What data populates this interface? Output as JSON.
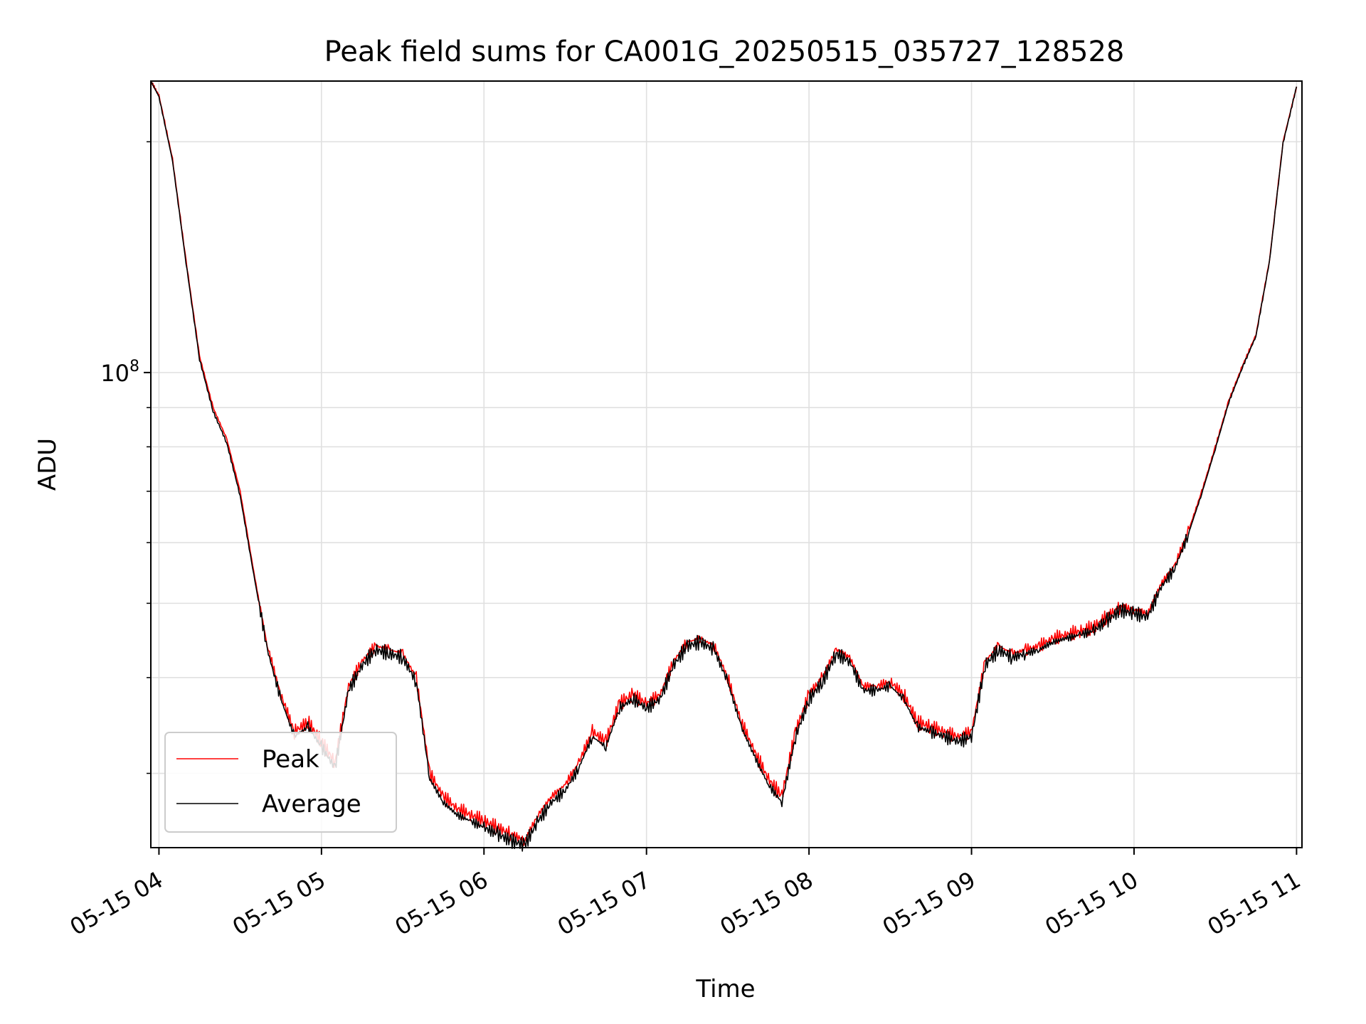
{
  "chart_data": {
    "type": "line",
    "title": "Peak field sums for CA001G_20250515_035727_128528",
    "xlabel": "Time",
    "ylabel": "ADU",
    "y_scale": "log",
    "ylim": [
      24000000,
      240000000
    ],
    "xlim": [
      "05-15 03:57",
      "05-15 11:02"
    ],
    "grid": true,
    "legend_position": "lower-left",
    "x_ticks": [
      "05-15 04",
      "05-15 05",
      "05-15 06",
      "05-15 07",
      "05-15 08",
      "05-15 09",
      "05-15 10",
      "05-15 11"
    ],
    "y_major_tick": {
      "base": "10",
      "exponent": "8",
      "value": 100000000
    },
    "y_minor_ticks": [
      30000000,
      40000000,
      50000000,
      60000000,
      70000000,
      80000000,
      90000000,
      200000000
    ],
    "x": [
      "03:57",
      "04:00",
      "04:05",
      "04:10",
      "04:15",
      "04:20",
      "04:25",
      "04:30",
      "04:35",
      "04:40",
      "04:45",
      "04:50",
      "04:55",
      "05:00",
      "05:05",
      "05:10",
      "05:15",
      "05:20",
      "05:25",
      "05:30",
      "05:35",
      "05:40",
      "05:45",
      "05:50",
      "05:55",
      "06:00",
      "06:05",
      "06:10",
      "06:15",
      "06:20",
      "06:25",
      "06:30",
      "06:35",
      "06:40",
      "06:45",
      "06:50",
      "06:55",
      "07:00",
      "07:05",
      "07:10",
      "07:15",
      "07:20",
      "07:25",
      "07:30",
      "07:35",
      "07:40",
      "07:45",
      "07:50",
      "07:55",
      "08:00",
      "08:05",
      "08:10",
      "08:15",
      "08:20",
      "08:25",
      "08:30",
      "08:35",
      "08:40",
      "08:45",
      "08:50",
      "08:55",
      "09:00",
      "09:05",
      "09:10",
      "09:15",
      "09:20",
      "09:25",
      "09:30",
      "09:35",
      "09:40",
      "09:45",
      "09:50",
      "09:55",
      "10:00",
      "10:05",
      "10:10",
      "10:15",
      "10:20",
      "10:25",
      "10:30",
      "10:35",
      "10:40",
      "10:45",
      "10:50",
      "10:55",
      "11:00"
    ],
    "series": [
      {
        "name": "Peak",
        "color": "#ff0000",
        "values": [
          240000000,
          230000000,
          190000000,
          140000000,
          105000000,
          90000000,
          82000000,
          70000000,
          55000000,
          44000000,
          38000000,
          34000000,
          35000000,
          33000000,
          31000000,
          39000000,
          42000000,
          44000000,
          43500000,
          43000000,
          40000000,
          30000000,
          28000000,
          27000000,
          26500000,
          26000000,
          25500000,
          25000000,
          24500000,
          26500000,
          28000000,
          29000000,
          31000000,
          34000000,
          33000000,
          37000000,
          38000000,
          37000000,
          38000000,
          42000000,
          44500000,
          45000000,
          44000000,
          40000000,
          35000000,
          32000000,
          29500000,
          28000000,
          34000000,
          38000000,
          40000000,
          43500000,
          42500000,
          39000000,
          39000000,
          39500000,
          38000000,
          35000000,
          34500000,
          34000000,
          33500000,
          34000000,
          42000000,
          44000000,
          43000000,
          43500000,
          44000000,
          45000000,
          45500000,
          46000000,
          46500000,
          48000000,
          49500000,
          49000000,
          48500000,
          53000000,
          56000000,
          62000000,
          70000000,
          80000000,
          92000000,
          102000000,
          112000000,
          140000000,
          200000000,
          236000000
        ]
      },
      {
        "name": "Average",
        "color": "#000000",
        "values": [
          240000000,
          229000000,
          189000000,
          139000000,
          104000000,
          89000000,
          81000000,
          69000000,
          54500000,
          43500000,
          37500000,
          33500000,
          34500000,
          32500000,
          30500000,
          38500000,
          41500000,
          43500000,
          43000000,
          42500000,
          39500000,
          29500000,
          27500000,
          26500000,
          26000000,
          25500000,
          25000000,
          24500000,
          24200000,
          26000000,
          27500000,
          28500000,
          30500000,
          33500000,
          32500000,
          36500000,
          37500000,
          36500000,
          37500000,
          41500000,
          44000000,
          44500000,
          43500000,
          39500000,
          34500000,
          31500000,
          29000000,
          27500000,
          33500000,
          37500000,
          39500000,
          43000000,
          42000000,
          38500000,
          38500000,
          39000000,
          37500000,
          34500000,
          34000000,
          33500000,
          33000000,
          33500000,
          41500000,
          43500000,
          42500000,
          43000000,
          43500000,
          44500000,
          45000000,
          45500000,
          46000000,
          47500000,
          49000000,
          48500000,
          48000000,
          52500000,
          55500000,
          61500000,
          69500000,
          79500000,
          91500000,
          101500000,
          111500000,
          139500000,
          199000000,
          236000000
        ]
      }
    ]
  }
}
